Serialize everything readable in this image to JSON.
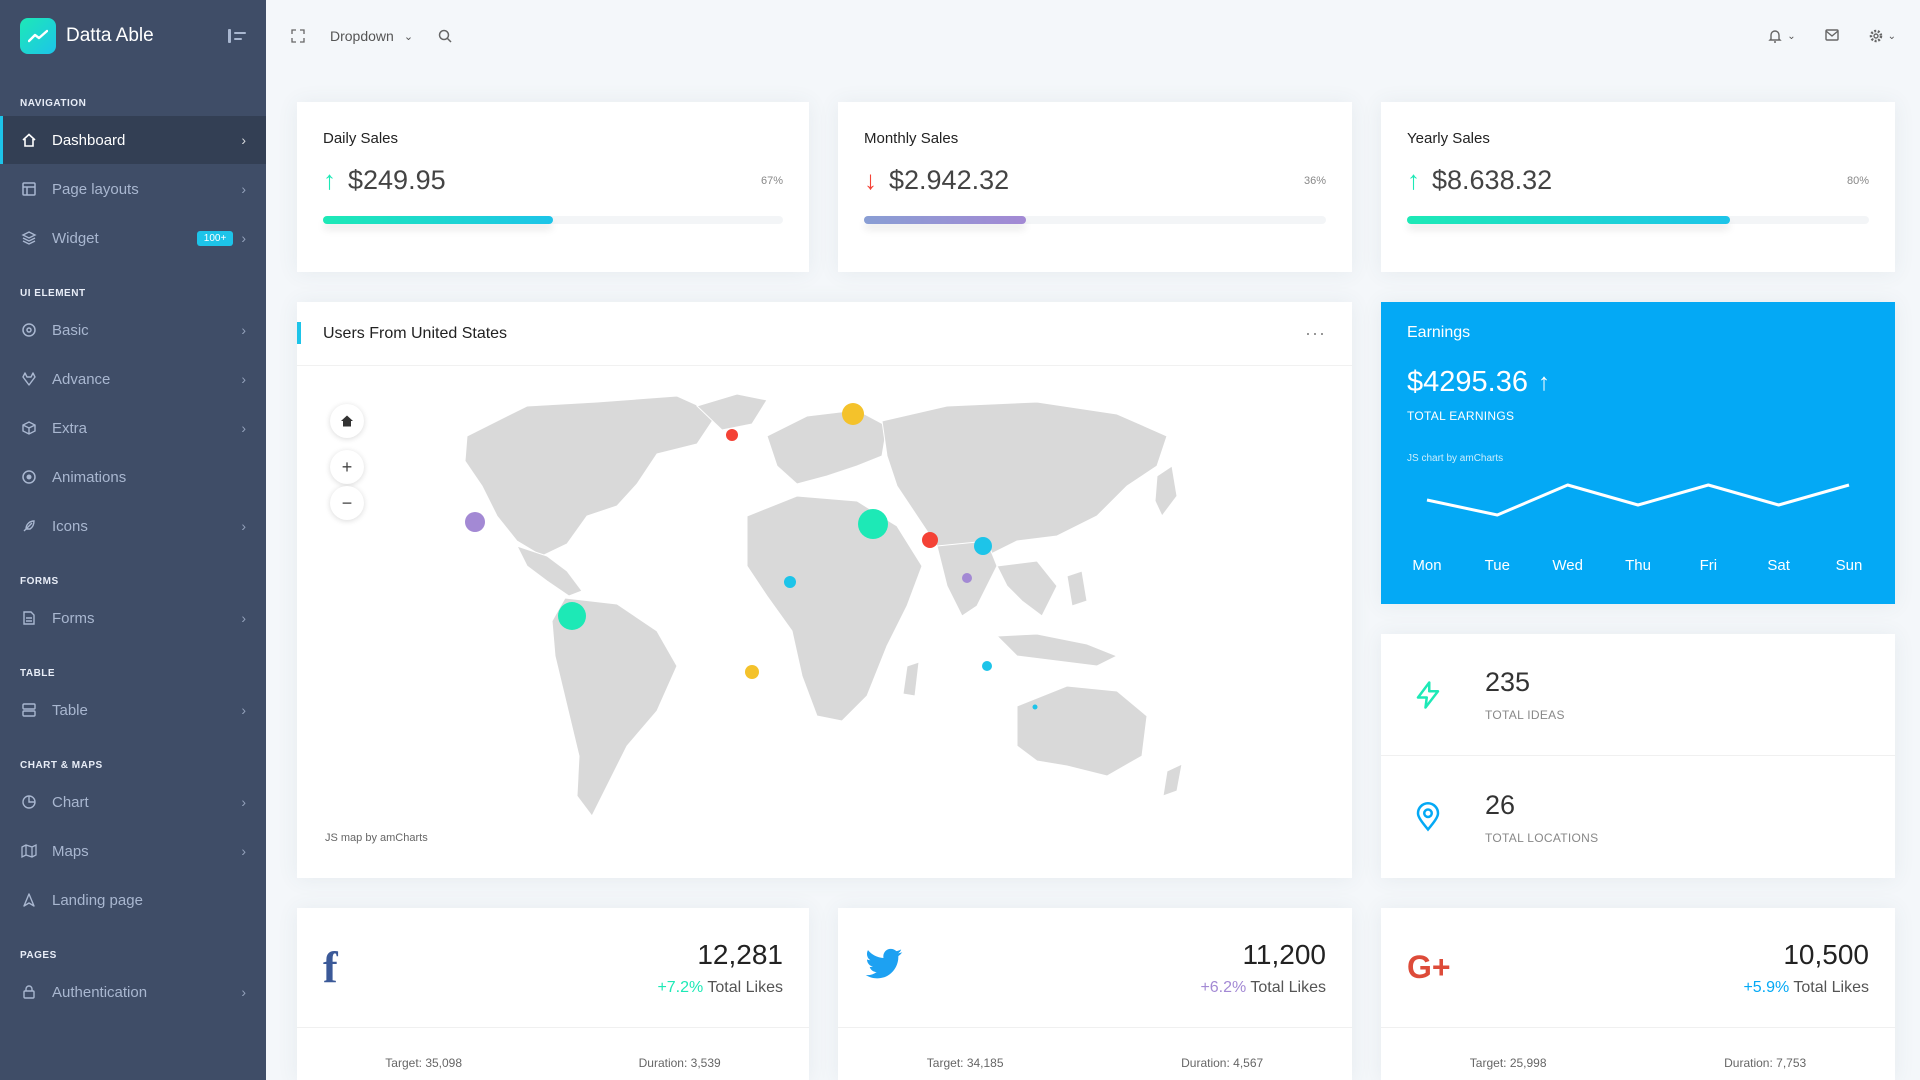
{
  "brand": {
    "name": "Datta Able"
  },
  "sidebar": {
    "captions": {
      "navigation": "NAVIGATION",
      "ui_element": "UI ELEMENT",
      "forms": "FORMS",
      "table": "TABLE",
      "chart_maps": "CHART & MAPS",
      "pages": "PAGES"
    },
    "items": {
      "dashboard": "Dashboard",
      "page_layouts": "Page layouts",
      "widget": "Widget",
      "widget_badge": "100+",
      "basic": "Basic",
      "advance": "Advance",
      "extra": "Extra",
      "animations": "Animations",
      "icons": "Icons",
      "forms": "Forms",
      "table": "Table",
      "chart": "Chart",
      "maps": "Maps",
      "landing": "Landing page",
      "authentication": "Authentication"
    }
  },
  "topbar": {
    "dropdown": "Dropdown"
  },
  "sales": [
    {
      "title": "Daily Sales",
      "value": "$249.95",
      "pct": "67%",
      "fraction": 0.5,
      "direction": "up"
    },
    {
      "title": "Monthly Sales",
      "value": "$2.942.32",
      "pct": "36%",
      "fraction": 0.35,
      "direction": "down"
    },
    {
      "title": "Yearly Sales",
      "value": "$8.638.32",
      "pct": "80%",
      "fraction": 0.7,
      "direction": "up"
    }
  ],
  "map_card": {
    "title": "Users From United States",
    "credit": "JS map by amCharts"
  },
  "earnings": {
    "title": "Earnings",
    "value": "$4295.36",
    "subtitle": "TOTAL EARNINGS",
    "credit": "JS chart by amCharts",
    "chart_data": {
      "type": "line",
      "categories": [
        "Mon",
        "Tue",
        "Wed",
        "Thu",
        "Fri",
        "Sat",
        "Sun"
      ],
      "values": [
        6,
        3,
        9,
        5,
        9,
        5,
        9
      ]
    }
  },
  "stats": [
    {
      "value": "235",
      "label": "TOTAL IDEAS"
    },
    {
      "value": "26",
      "label": "TOTAL LOCATIONS"
    }
  ],
  "social": [
    {
      "network": "facebook",
      "likes": "12,281",
      "change": "+7.2%",
      "change_color": "#1de9b6",
      "likes_label": "Total Likes",
      "target": "Target: 35,098",
      "duration": "Duration: 3,539"
    },
    {
      "network": "twitter",
      "likes": "11,200",
      "change": "+6.2%",
      "change_color": "#a389d4",
      "likes_label": "Total Likes",
      "target": "Target: 34,185",
      "duration": "Duration: 4,567"
    },
    {
      "network": "google-plus",
      "likes": "10,500",
      "change": "+5.9%",
      "change_color": "#04a9f5",
      "likes_label": "Total Likes",
      "target": "Target: 25,998",
      "duration": "Duration: 7,753"
    }
  ]
}
